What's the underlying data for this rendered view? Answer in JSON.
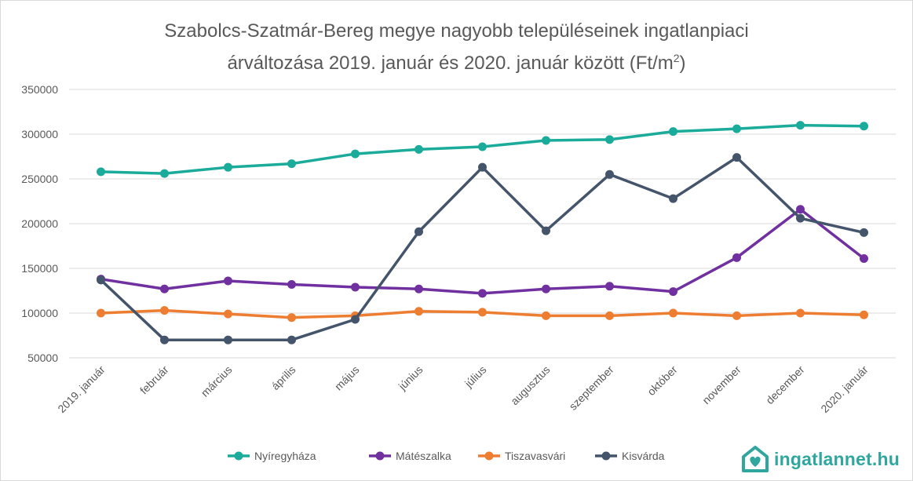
{
  "title": {
    "line1": "Szabolcs-Szatmár-Bereg megye nagyobb településeinek ingatlanpiaci",
    "line2": "árváltozása 2019. január és 2020. január között (Ft/m",
    "unit_sup": "2",
    "close": ")"
  },
  "brand": {
    "name": "ingatlannet.hu",
    "icon": "house-heart-icon",
    "color": "#2fa79e"
  },
  "chart_data": {
    "type": "line",
    "title": "Szabolcs-Szatmár-Bereg megye nagyobb településeinek ingatlanpiaci árváltozása 2019. január és 2020. január között (Ft/m2)",
    "xlabel": "",
    "ylabel": "",
    "ylim": [
      50000,
      350000
    ],
    "yticks": [
      50000,
      100000,
      150000,
      200000,
      250000,
      300000,
      350000
    ],
    "grid": true,
    "legend": "bottom",
    "categories": [
      "2019. január",
      "február",
      "március",
      "április",
      "május",
      "június",
      "július",
      "augusztus",
      "szeptember",
      "október",
      "november",
      "december",
      "2020. január"
    ],
    "series": [
      {
        "name": "Nyíregyháza",
        "color": "#1aab9b",
        "values": [
          258000,
          256000,
          263000,
          267000,
          278000,
          283000,
          286000,
          293000,
          294000,
          303000,
          306000,
          310000,
          309000
        ]
      },
      {
        "name": "Mátészalka",
        "color": "#7030a0",
        "values": [
          138000,
          127000,
          136000,
          132000,
          129000,
          127000,
          122000,
          127000,
          130000,
          124000,
          162000,
          216000,
          161000
        ]
      },
      {
        "name": "Tiszavasvári",
        "color": "#ed7d31",
        "values": [
          100000,
          103000,
          99000,
          95000,
          97000,
          102000,
          101000,
          97000,
          97000,
          100000,
          97000,
          100000,
          98000
        ]
      },
      {
        "name": "Kisvárda",
        "color": "#44546a",
        "values": [
          137000,
          70000,
          70000,
          70000,
          93000,
          191000,
          263000,
          192000,
          255000,
          228000,
          274000,
          206000,
          190000
        ]
      }
    ]
  }
}
